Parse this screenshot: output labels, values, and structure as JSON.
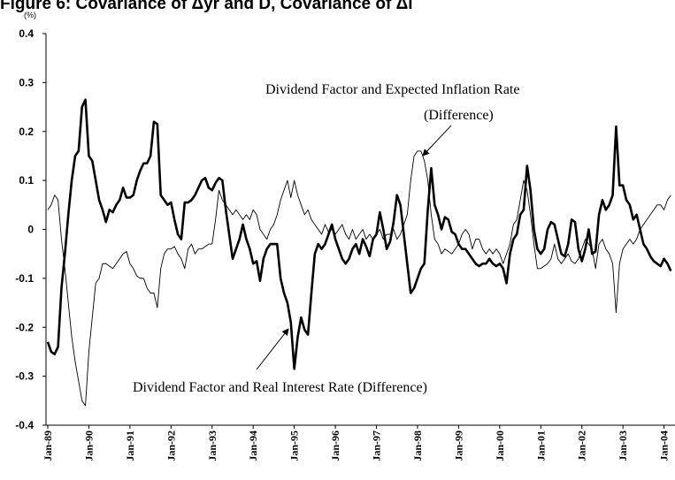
{
  "chart_data": {
    "type": "line",
    "title": "Figure 6: Covariance of Δyr and D, Covariance of Δi",
    "y_unit": "(%)",
    "annotations": [
      "Dividend Factor and Expected Inflation Rate",
      "(Difference)",
      "Dividend Factor and Real Interest Rate (Difference)"
    ],
    "categories": [
      "Jan-89",
      null,
      null,
      null,
      null,
      null,
      null,
      null,
      null,
      null,
      null,
      null,
      "Jan-90",
      null,
      null,
      null,
      null,
      null,
      null,
      null,
      null,
      null,
      null,
      null,
      "Jan-91",
      null,
      null,
      null,
      null,
      null,
      null,
      null,
      null,
      null,
      null,
      null,
      "Jan-92",
      null,
      null,
      null,
      null,
      null,
      null,
      null,
      null,
      null,
      null,
      null,
      "Jan-93",
      null,
      null,
      null,
      null,
      null,
      null,
      null,
      null,
      null,
      null,
      null,
      "Jan-94",
      null,
      null,
      null,
      null,
      null,
      null,
      null,
      null,
      null,
      null,
      null,
      "Jan-95",
      null,
      null,
      null,
      null,
      null,
      null,
      null,
      null,
      null,
      null,
      null,
      "Jan-96",
      null,
      null,
      null,
      null,
      null,
      null,
      null,
      null,
      null,
      null,
      null,
      "Jan-97",
      null,
      null,
      null,
      null,
      null,
      null,
      null,
      null,
      null,
      null,
      null,
      "Jan-98",
      null,
      null,
      null,
      null,
      null,
      null,
      null,
      null,
      null,
      null,
      null,
      "Jan-99",
      null,
      null,
      null,
      null,
      null,
      null,
      null,
      null,
      null,
      null,
      null,
      "Jan-00",
      null,
      null,
      null,
      null,
      null,
      null,
      null,
      null,
      null,
      null,
      null,
      "Jan-01",
      null,
      null,
      null,
      null,
      null,
      null,
      null,
      null,
      null,
      null,
      null,
      "Jan-02",
      null,
      null,
      null,
      null,
      null,
      null,
      null,
      null,
      null,
      null,
      null,
      "Jan-03",
      null,
      null,
      null,
      null,
      null,
      null,
      null,
      null,
      null,
      null,
      null,
      "Jan-04",
      null,
      null
    ],
    "series": [
      {
        "name": "Dividend Factor and Real Interest Rate (Difference)",
        "color": "#000000",
        "width": 2.6,
        "values": [
          -0.23,
          -0.25,
          -0.255,
          -0.24,
          -0.12,
          -0.05,
          0.03,
          0.1,
          0.15,
          0.16,
          0.25,
          0.265,
          0.15,
          0.14,
          0.1,
          0.06,
          0.04,
          0.015,
          0.04,
          0.035,
          0.05,
          0.06,
          0.085,
          0.065,
          0.065,
          0.07,
          0.1,
          0.12,
          0.135,
          0.135,
          0.15,
          0.22,
          0.215,
          0.07,
          0.06,
          0.05,
          0.055,
          0.02,
          -0.01,
          -0.02,
          0.055,
          0.055,
          0.06,
          0.07,
          0.085,
          0.1,
          0.105,
          0.085,
          0.08,
          0.095,
          0.105,
          0.1,
          0.04,
          -0.01,
          -0.06,
          -0.04,
          -0.02,
          0.01,
          -0.02,
          -0.04,
          -0.07,
          -0.065,
          -0.105,
          -0.06,
          -0.04,
          -0.03,
          -0.03,
          -0.03,
          -0.1,
          -0.13,
          -0.15,
          -0.19,
          -0.285,
          -0.22,
          -0.18,
          -0.205,
          -0.215,
          -0.13,
          -0.05,
          -0.03,
          -0.04,
          -0.03,
          -0.01,
          0.01,
          -0.02,
          -0.04,
          -0.06,
          -0.07,
          -0.06,
          -0.04,
          -0.03,
          -0.05,
          -0.02,
          -0.035,
          -0.055,
          -0.02,
          -0.01,
          0.035,
          0.0,
          -0.04,
          -0.025,
          0.015,
          0.07,
          0.05,
          -0.01,
          -0.07,
          -0.13,
          -0.12,
          -0.1,
          -0.08,
          -0.07,
          0.04,
          0.125,
          0.05,
          0.03,
          0.0,
          0.025,
          0.02,
          -0.005,
          -0.01,
          -0.03,
          -0.04,
          -0.04,
          -0.05,
          -0.06,
          -0.07,
          -0.075,
          -0.07,
          -0.07,
          -0.06,
          -0.07,
          -0.075,
          -0.07,
          -0.08,
          -0.11,
          -0.05,
          -0.02,
          -0.01,
          0.03,
          0.04,
          0.13,
          0.08,
          0.0,
          -0.04,
          -0.05,
          -0.04,
          0.0,
          0.015,
          0.01,
          -0.02,
          -0.05,
          -0.055,
          -0.03,
          0.02,
          0.015,
          -0.04,
          -0.065,
          -0.04,
          0.0,
          -0.05,
          -0.045,
          0.03,
          0.06,
          0.04,
          0.05,
          0.07,
          0.21,
          0.09,
          0.09,
          0.06,
          0.05,
          0.02,
          0.03,
          0.0,
          -0.03,
          -0.04,
          -0.055,
          -0.065,
          -0.07,
          -0.075,
          -0.06,
          -0.07,
          -0.085
        ]
      },
      {
        "name": "Dividend Factor and Expected Inflation Rate (Difference)",
        "color": "#000000",
        "width": 0.9,
        "values": [
          0.04,
          0.05,
          0.07,
          0.06,
          -0.02,
          -0.08,
          -0.15,
          -0.22,
          -0.27,
          -0.31,
          -0.35,
          -0.36,
          -0.25,
          -0.18,
          -0.11,
          -0.1,
          -0.07,
          -0.07,
          -0.075,
          -0.08,
          -0.07,
          -0.06,
          -0.05,
          -0.045,
          -0.07,
          -0.08,
          -0.095,
          -0.1,
          -0.1,
          -0.12,
          -0.13,
          -0.13,
          -0.16,
          -0.08,
          -0.05,
          -0.04,
          -0.04,
          -0.035,
          -0.05,
          -0.06,
          -0.08,
          -0.04,
          -0.03,
          -0.05,
          -0.04,
          -0.04,
          -0.035,
          -0.03,
          -0.03,
          0.02,
          0.08,
          0.06,
          0.05,
          0.04,
          0.03,
          0.04,
          0.03,
          0.02,
          0.03,
          0.02,
          0.04,
          0.03,
          0.0,
          -0.01,
          -0.02,
          0.0,
          0.01,
          0.03,
          0.06,
          0.08,
          0.1,
          0.065,
          0.1,
          0.07,
          0.05,
          0.03,
          0.04,
          0.02,
          0.01,
          0.0,
          -0.01,
          0.01,
          -0.005,
          0.0,
          -0.01,
          0.0,
          0.01,
          -0.01,
          -0.02,
          0.0,
          -0.02,
          -0.01,
          0.0,
          -0.02,
          -0.01,
          -0.02,
          -0.01,
          0.0,
          -0.02,
          -0.01,
          -0.01,
          0.0,
          -0.02,
          -0.01,
          0.01,
          0.03,
          0.1,
          0.15,
          0.16,
          0.16,
          0.14,
          0.1,
          0.03,
          -0.02,
          -0.03,
          -0.05,
          -0.04,
          -0.045,
          -0.05,
          -0.04,
          -0.03,
          -0.01,
          0.0,
          -0.01,
          -0.04,
          -0.02,
          -0.02,
          -0.04,
          -0.05,
          -0.04,
          -0.05,
          -0.04,
          -0.05,
          -0.07,
          -0.05,
          -0.03,
          0.01,
          0.02,
          0.06,
          0.1,
          0.08,
          0.03,
          -0.03,
          -0.08,
          -0.08,
          -0.075,
          -0.07,
          -0.06,
          -0.03,
          -0.06,
          -0.07,
          -0.06,
          -0.05,
          -0.065,
          -0.07,
          -0.06,
          -0.04,
          -0.02,
          -0.03,
          -0.04,
          -0.08,
          -0.03,
          -0.02,
          -0.04,
          -0.05,
          -0.07,
          -0.17,
          -0.07,
          -0.04,
          -0.03,
          -0.02,
          -0.03,
          -0.02,
          0.0,
          0.01,
          0.02,
          0.03,
          0.04,
          0.05,
          0.05,
          0.04,
          0.06,
          0.07
        ]
      }
    ],
    "ylim": [
      -0.4,
      0.4
    ],
    "yticks": [
      -0.4,
      -0.3,
      -0.2,
      -0.1,
      0,
      0.1,
      0.2,
      0.3,
      0.4
    ]
  }
}
